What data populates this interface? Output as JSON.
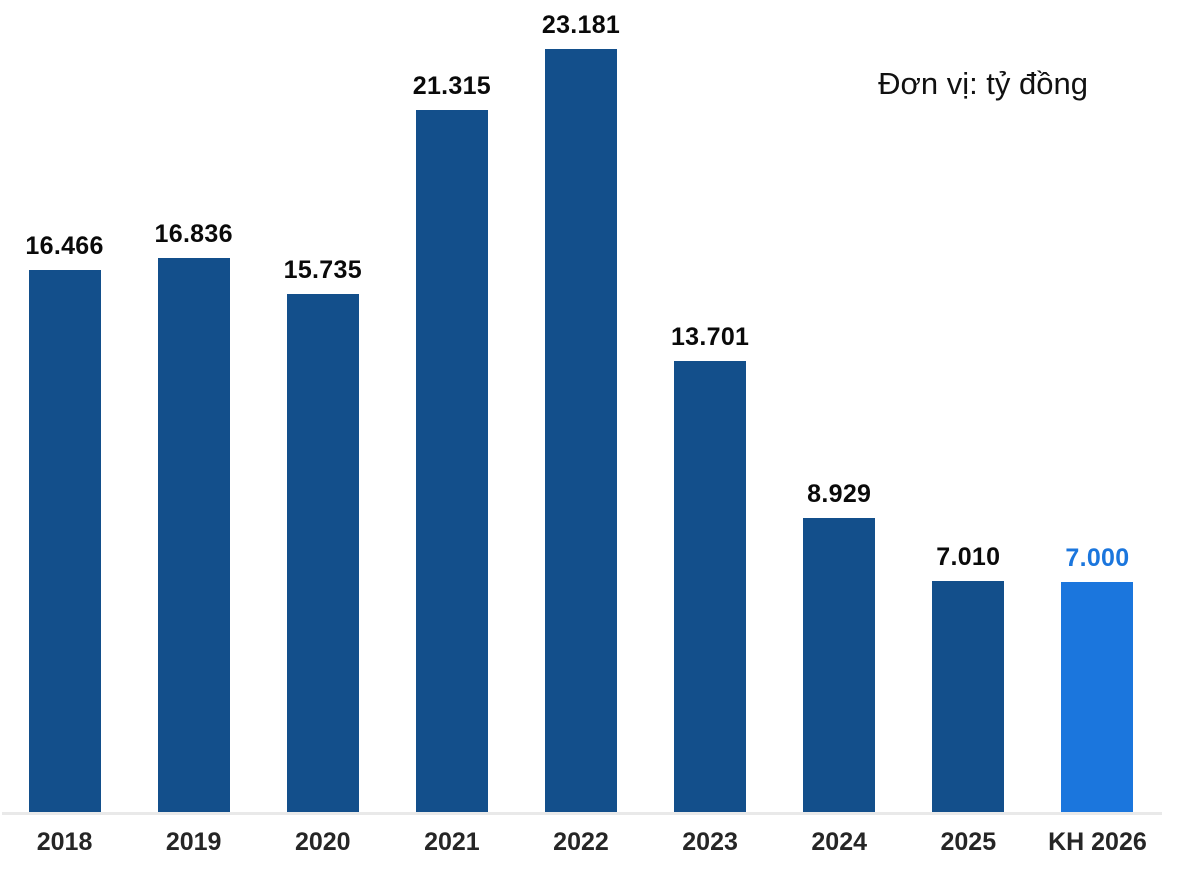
{
  "unit_note": "Đơn vị: tỷ đồng",
  "colors": {
    "bar": "#134f8b",
    "plan_bar": "#1b76dd",
    "value_label": "#0a0a0a",
    "plan_value_label": "#1b76dd",
    "tick_label": "#262626",
    "axis_line": "#e9e9e9",
    "background": "#ffffff"
  },
  "chart_data": {
    "type": "bar",
    "title": "",
    "unit_note": "Đơn vị: tỷ đồng",
    "categories": [
      "2018",
      "2019",
      "2020",
      "2021",
      "2022",
      "2023",
      "2024",
      "2025",
      "KH 2026"
    ],
    "values": [
      16466,
      16836,
      15735,
      21315,
      23181,
      13701,
      8929,
      7010,
      7000
    ],
    "value_labels": [
      "16.466",
      "16.836",
      "15.735",
      "21.315",
      "23.181",
      "13.701",
      "8.929",
      "7.010",
      "7.000"
    ],
    "highlight_index": 8,
    "highlight_category": "KH 2026",
    "xlabel": "",
    "ylabel": "",
    "ylim": [
      0,
      23181
    ],
    "grid": false,
    "legend": false,
    "legend_position": "none",
    "orientation": "vertical"
  }
}
